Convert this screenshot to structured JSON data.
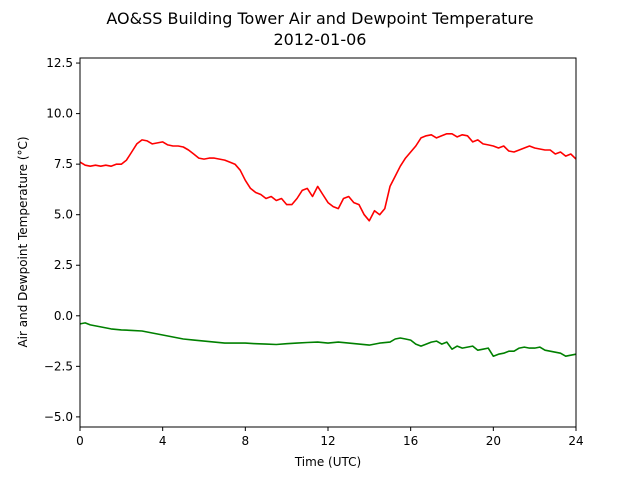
{
  "chart_data": {
    "type": "line",
    "title": "AO&SS Building Tower Air and Dewpoint Temperature",
    "subtitle": "2012-01-06",
    "xlabel": "Time (UTC)",
    "ylabel": "Air and Dewpoint Temperature (°C)",
    "xlim": [
      0,
      24
    ],
    "ylim": [
      -5.5,
      12.75
    ],
    "xticks": [
      0,
      4,
      8,
      12,
      16,
      20,
      24
    ],
    "xtick_labels": [
      "0",
      "4",
      "8",
      "12",
      "16",
      "20",
      "24"
    ],
    "yticks": [
      -5.0,
      -2.5,
      0.0,
      2.5,
      5.0,
      7.5,
      10.0,
      12.5
    ],
    "ytick_labels": [
      "−5.0",
      "−2.5",
      "0.0",
      "2.5",
      "5.0",
      "7.5",
      "10.0",
      "12.5"
    ],
    "grid": false,
    "series": [
      {
        "color": "#ff0000",
        "x": [
          0,
          0.25,
          0.5,
          0.75,
          1.0,
          1.25,
          1.5,
          1.75,
          2.0,
          2.25,
          2.5,
          2.75,
          3.0,
          3.25,
          3.5,
          3.75,
          4.0,
          4.25,
          4.5,
          4.75,
          5.0,
          5.25,
          5.5,
          5.75,
          6.0,
          6.25,
          6.5,
          6.75,
          7.0,
          7.25,
          7.5,
          7.75,
          8.0,
          8.25,
          8.5,
          8.75,
          9.0,
          9.25,
          9.5,
          9.75,
          10.0,
          10.25,
          10.5,
          10.75,
          11.0,
          11.25,
          11.5,
          11.75,
          12.0,
          12.25,
          12.5,
          12.75,
          13.0,
          13.25,
          13.5,
          13.75,
          14.0,
          14.25,
          14.5,
          14.75,
          15.0,
          15.25,
          15.5,
          15.75,
          16.0,
          16.25,
          16.5,
          16.75,
          17.0,
          17.25,
          17.5,
          17.75,
          18.0,
          18.25,
          18.5,
          18.75,
          19.0,
          19.25,
          19.5,
          19.75,
          20.0,
          20.25,
          20.5,
          20.75,
          21.0,
          21.25,
          21.5,
          21.75,
          22.0,
          22.25,
          22.5,
          22.75,
          23.0,
          23.25,
          23.5,
          23.75,
          24.0
        ],
        "values": [
          7.6,
          7.45,
          7.4,
          7.45,
          7.4,
          7.45,
          7.4,
          7.5,
          7.5,
          7.7,
          8.1,
          8.5,
          8.7,
          8.65,
          8.5,
          8.55,
          8.6,
          8.45,
          8.4,
          8.4,
          8.35,
          8.2,
          8.0,
          7.8,
          7.75,
          7.8,
          7.8,
          7.75,
          7.7,
          7.6,
          7.5,
          7.2,
          6.7,
          6.3,
          6.1,
          6.0,
          5.8,
          5.9,
          5.7,
          5.8,
          5.5,
          5.5,
          5.8,
          6.2,
          6.3,
          5.9,
          6.4,
          6.0,
          5.6,
          5.4,
          5.3,
          5.8,
          5.9,
          5.6,
          5.5,
          5.0,
          4.7,
          5.2,
          5.0,
          5.3,
          6.4,
          6.9,
          7.4,
          7.8,
          8.1,
          8.4,
          8.8,
          8.9,
          8.95,
          8.8,
          8.9,
          9.0,
          9.0,
          8.85,
          8.95,
          8.9,
          8.6,
          8.7,
          8.5,
          8.45,
          8.4,
          8.3,
          8.4,
          8.15,
          8.1,
          8.2,
          8.3,
          8.4,
          8.3,
          8.25,
          8.2,
          8.2,
          8.0,
          8.1,
          7.9,
          8.0,
          7.75
        ]
      },
      {
        "color": "#008000",
        "x": [
          0,
          0.25,
          0.5,
          0.75,
          1.0,
          1.5,
          2.0,
          2.5,
          3.0,
          3.5,
          4.0,
          4.5,
          5.0,
          5.5,
          6.0,
          6.5,
          7.0,
          7.5,
          8.0,
          8.5,
          9.0,
          9.5,
          10.0,
          10.5,
          11.0,
          11.5,
          12.0,
          12.5,
          13.0,
          13.5,
          14.0,
          14.5,
          15.0,
          15.25,
          15.5,
          15.75,
          16.0,
          16.25,
          16.5,
          16.75,
          17.0,
          17.25,
          17.5,
          17.75,
          18.0,
          18.25,
          18.5,
          18.75,
          19.0,
          19.25,
          19.5,
          19.75,
          20.0,
          20.25,
          20.5,
          20.75,
          21.0,
          21.25,
          21.5,
          21.75,
          22.0,
          22.25,
          22.5,
          22.75,
          23.0,
          23.25,
          23.5,
          23.75,
          24.0
        ],
        "values": [
          -0.4,
          -0.35,
          -0.45,
          -0.5,
          -0.55,
          -0.65,
          -0.7,
          -0.72,
          -0.75,
          -0.85,
          -0.95,
          -1.05,
          -1.15,
          -1.2,
          -1.25,
          -1.3,
          -1.35,
          -1.35,
          -1.35,
          -1.38,
          -1.4,
          -1.42,
          -1.38,
          -1.35,
          -1.32,
          -1.3,
          -1.35,
          -1.3,
          -1.35,
          -1.4,
          -1.45,
          -1.35,
          -1.3,
          -1.15,
          -1.1,
          -1.15,
          -1.2,
          -1.4,
          -1.5,
          -1.4,
          -1.3,
          -1.25,
          -1.4,
          -1.3,
          -1.65,
          -1.5,
          -1.6,
          -1.55,
          -1.5,
          -1.7,
          -1.65,
          -1.6,
          -2.0,
          -1.9,
          -1.85,
          -1.75,
          -1.75,
          -1.6,
          -1.55,
          -1.6,
          -1.6,
          -1.55,
          -1.7,
          -1.75,
          -1.8,
          -1.85,
          -2.0,
          -1.95,
          -1.9
        ]
      }
    ]
  }
}
